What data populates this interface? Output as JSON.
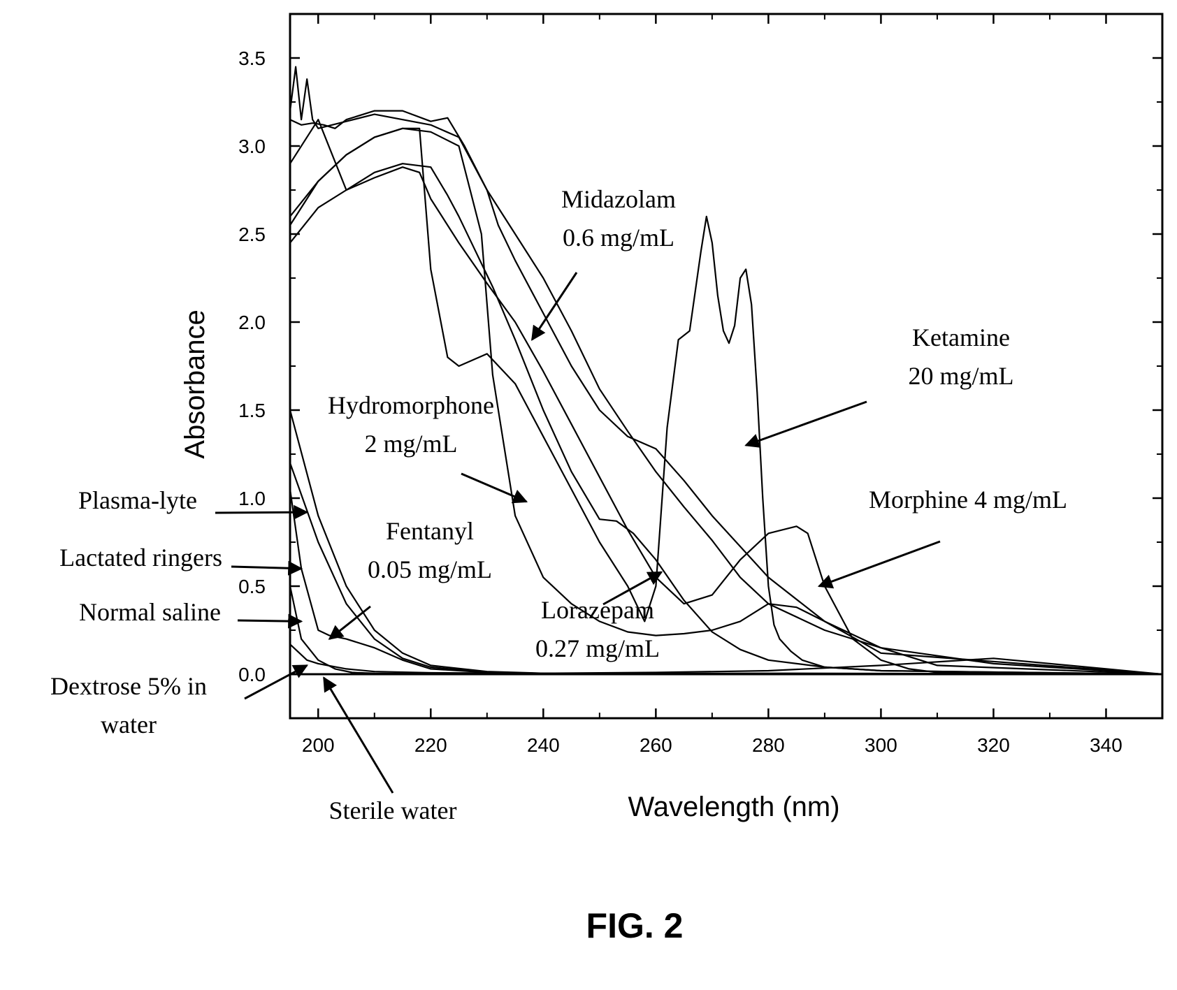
{
  "chart_data": {
    "type": "line",
    "title": "",
    "xlabel": "Wavelength (nm)",
    "ylabel": "Absorbance",
    "xlim": [
      195,
      350
    ],
    "ylim": [
      -0.25,
      3.75
    ],
    "xticks": [
      200,
      220,
      240,
      260,
      280,
      300,
      320,
      340
    ],
    "yticks": [
      0.0,
      0.5,
      1.0,
      1.5,
      2.0,
      2.5,
      3.0,
      3.5
    ],
    "xtick_labels": [
      "200",
      "220",
      "240",
      "260",
      "280",
      "300",
      "320",
      "340"
    ],
    "ytick_labels": [
      "0.0",
      "0.5",
      "1.0",
      "1.5",
      "2.0",
      "2.5",
      "3.0",
      "3.5"
    ],
    "grid": false,
    "legend": "none",
    "series": [
      {
        "x": [
          195,
          196,
          197,
          198,
          199,
          200,
          205,
          210,
          215,
          220,
          225,
          230,
          235,
          240,
          245,
          250,
          255,
          260,
          265,
          270,
          275,
          280,
          290,
          300,
          320,
          350
        ],
        "y": [
          3.2,
          3.45,
          3.15,
          3.38,
          3.15,
          3.1,
          3.14,
          3.18,
          3.15,
          3.12,
          3.05,
          2.75,
          2.5,
          2.25,
          1.95,
          1.62,
          1.38,
          1.15,
          0.95,
          0.76,
          0.55,
          0.4,
          0.25,
          0.15,
          0.06,
          0.0
        ]
      },
      {
        "x": [
          195,
          197,
          199,
          201,
          203,
          205,
          210,
          215,
          220,
          223,
          226,
          230,
          232,
          235,
          240,
          245,
          250,
          255,
          260,
          265,
          270,
          280,
          290,
          300,
          350
        ],
        "y": [
          3.15,
          3.12,
          3.13,
          3.12,
          3.1,
          3.15,
          3.2,
          3.2,
          3.14,
          3.16,
          3.0,
          2.75,
          2.55,
          2.35,
          2.05,
          1.75,
          1.5,
          1.35,
          1.28,
          1.1,
          0.9,
          0.55,
          0.3,
          0.12,
          0.0
        ]
      },
      {
        "x": [
          195,
          200,
          205,
          210,
          215,
          220,
          223,
          225,
          228,
          231,
          235,
          240,
          245,
          250,
          253,
          256,
          260,
          265,
          270,
          275,
          280,
          290,
          300,
          350
        ],
        "y": [
          2.9,
          3.15,
          2.75,
          2.85,
          2.9,
          2.88,
          2.72,
          2.6,
          2.4,
          2.2,
          1.9,
          1.5,
          1.15,
          0.88,
          0.87,
          0.8,
          0.65,
          0.42,
          0.24,
          0.14,
          0.08,
          0.04,
          0.02,
          0.0
        ]
      },
      {
        "x": [
          195,
          200,
          205,
          210,
          215,
          220,
          225,
          229,
          231,
          235,
          240,
          245,
          250,
          255,
          260,
          265,
          270,
          275,
          280,
          285,
          290,
          300,
          310,
          350
        ],
        "y": [
          2.55,
          2.8,
          2.95,
          3.05,
          3.1,
          3.08,
          3.0,
          2.5,
          1.7,
          0.9,
          0.55,
          0.4,
          0.3,
          0.24,
          0.22,
          0.23,
          0.25,
          0.3,
          0.4,
          0.38,
          0.3,
          0.15,
          0.05,
          0.0
        ]
      },
      {
        "x": [
          195,
          200,
          205,
          210,
          215,
          218,
          220,
          223,
          225,
          230,
          235,
          240,
          245,
          250,
          255,
          258,
          260,
          262,
          264,
          266,
          268,
          269,
          270,
          271,
          272,
          273,
          274,
          275,
          276,
          277,
          278,
          279,
          280,
          281,
          282,
          284,
          286,
          290,
          300,
          350
        ],
        "y": [
          2.6,
          2.8,
          2.95,
          3.05,
          3.1,
          3.1,
          2.3,
          1.8,
          1.75,
          1.82,
          1.65,
          1.35,
          1.05,
          0.75,
          0.5,
          0.3,
          0.5,
          1.4,
          1.9,
          1.95,
          2.4,
          2.6,
          2.45,
          2.15,
          1.95,
          1.88,
          1.98,
          2.25,
          2.3,
          2.1,
          1.6,
          1.0,
          0.5,
          0.28,
          0.2,
          0.13,
          0.08,
          0.04,
          0.02,
          0.0
        ]
      },
      {
        "x": [
          195,
          200,
          205,
          210,
          215,
          218,
          220,
          225,
          230,
          235,
          240,
          245,
          250,
          255,
          260,
          265,
          270,
          275,
          280,
          285,
          287,
          290,
          295,
          300,
          305,
          310,
          350
        ],
        "y": [
          2.45,
          2.65,
          2.75,
          2.82,
          2.88,
          2.85,
          2.7,
          2.45,
          2.22,
          2.0,
          1.72,
          1.42,
          1.12,
          0.82,
          0.55,
          0.4,
          0.45,
          0.65,
          0.8,
          0.84,
          0.8,
          0.5,
          0.2,
          0.08,
          0.03,
          0.01,
          0.0
        ]
      },
      {
        "x": [
          195,
          200,
          205,
          210,
          215,
          220,
          230,
          240,
          260,
          280,
          300,
          350
        ],
        "y": [
          1.5,
          0.9,
          0.5,
          0.25,
          0.12,
          0.05,
          0.015,
          0.005,
          0.0,
          0.0,
          0.0,
          0.0
        ]
      },
      {
        "x": [
          195,
          200,
          205,
          210,
          215,
          220,
          230,
          240,
          260,
          280,
          300,
          350
        ],
        "y": [
          1.2,
          0.75,
          0.4,
          0.2,
          0.09,
          0.04,
          0.01,
          0.003,
          0.0,
          0.0,
          0.0,
          0.0
        ]
      },
      {
        "x": [
          195,
          197,
          200,
          202,
          205,
          210,
          215,
          220,
          230,
          240,
          260,
          280,
          300,
          320,
          340,
          350
        ],
        "y": [
          1.05,
          0.6,
          0.25,
          0.22,
          0.2,
          0.15,
          0.08,
          0.03,
          0.01,
          0.005,
          0.01,
          0.02,
          0.05,
          0.09,
          0.03,
          0.0
        ]
      },
      {
        "x": [
          195,
          198,
          200,
          205,
          210,
          220,
          240,
          260,
          280,
          300,
          350
        ],
        "y": [
          0.17,
          0.08,
          0.06,
          0.03,
          0.015,
          0.008,
          0.005,
          0.004,
          0.005,
          0.004,
          0.0
        ]
      },
      {
        "x": [
          195,
          197,
          200,
          203,
          206,
          210,
          220,
          240,
          280,
          350
        ],
        "y": [
          0.5,
          0.2,
          0.08,
          0.03,
          0.01,
          0.005,
          0.002,
          0.0,
          0.0,
          0.0
        ]
      }
    ],
    "annotations": [
      {
        "lines": [
          "Midazolam",
          "0.6 mg/mL"
        ],
        "pointer": {
          "x": 238,
          "y": 1.9
        }
      },
      {
        "lines": [
          "Ketamine",
          "20 mg/mL"
        ],
        "pointer": {
          "x": 276,
          "y": 1.3
        }
      },
      {
        "lines": [
          "Hydromorphone",
          "2 mg/mL"
        ],
        "pointer": {
          "x": 237,
          "y": 0.98
        }
      },
      {
        "lines": [
          "Morphine 4 mg/mL"
        ],
        "pointer": {
          "x": 289,
          "y": 0.5
        }
      },
      {
        "lines": [
          "Fentanyl",
          "0.05 mg/mL"
        ],
        "pointer": {
          "x": 202,
          "y": 0.2
        }
      },
      {
        "lines": [
          "Lorazepam",
          "0.27 mg/mL"
        ],
        "pointer": {
          "x": 261,
          "y": 0.58
        }
      },
      {
        "lines": [
          "Plasma-lyte"
        ],
        "pointer": {
          "x": 198,
          "y": 0.92
        }
      },
      {
        "lines": [
          "Lactated ringers"
        ],
        "pointer": {
          "x": 197,
          "y": 0.6
        }
      },
      {
        "lines": [
          "Normal saline"
        ],
        "pointer": {
          "x": 197,
          "y": 0.3
        }
      },
      {
        "lines": [
          "Dextrose 5% in",
          "water"
        ],
        "pointer": {
          "x": 198,
          "y": 0.05
        }
      },
      {
        "lines": [
          "Sterile water"
        ],
        "pointer": {
          "x": 201,
          "y": -0.02
        }
      }
    ],
    "figure_label": "FIG. 2"
  }
}
